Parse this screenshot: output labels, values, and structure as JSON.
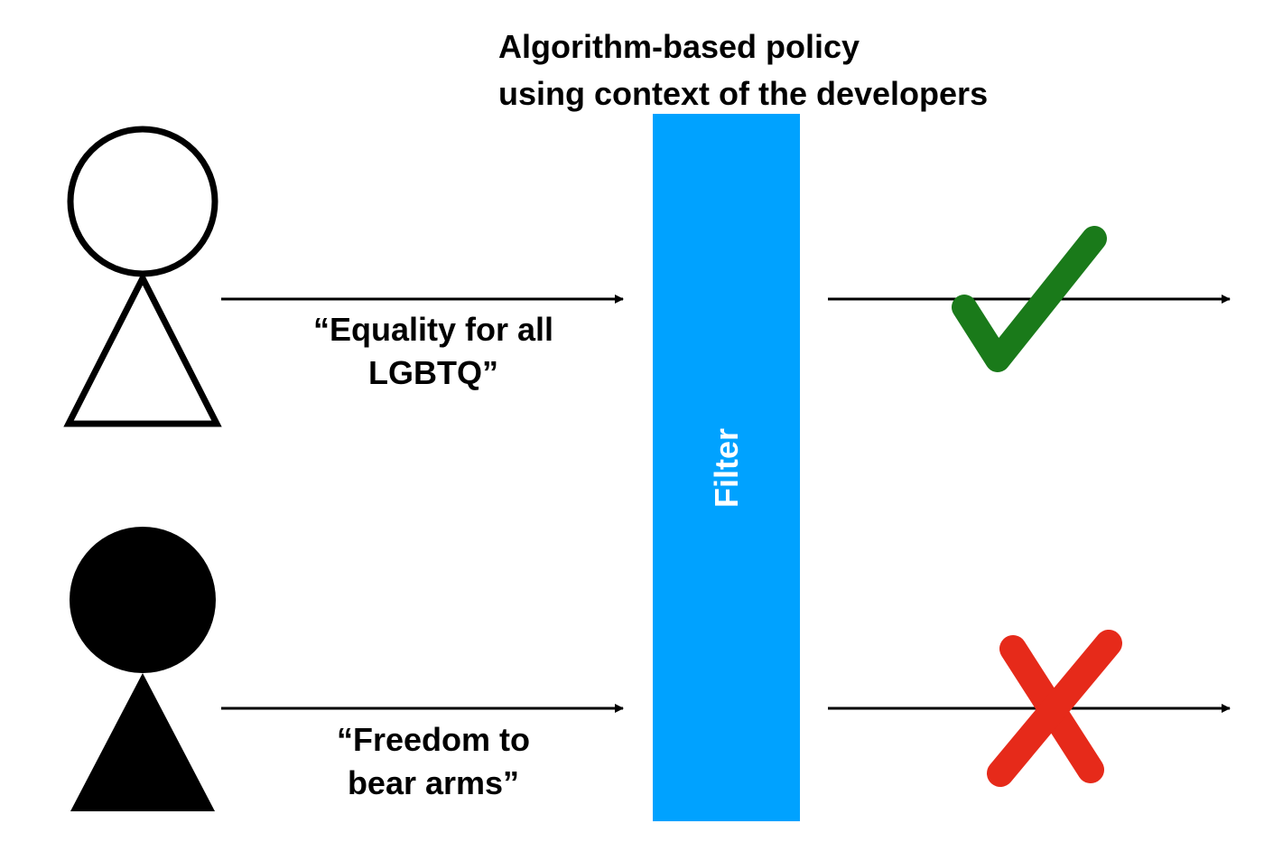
{
  "title": {
    "line1": "Algorithm-based policy",
    "line2": "using context of the developers"
  },
  "filter": {
    "label": "Filter",
    "color": "#00a2ff"
  },
  "rows": [
    {
      "person": "outline",
      "quote_line1": "“Equality for all",
      "quote_line2": "LGBTQ”",
      "result_icon": "checkmark-icon",
      "result_color": "#1a7a1a"
    },
    {
      "person": "filled",
      "quote_line1": "“Freedom to",
      "quote_line2": "bear arms”",
      "result_icon": "cross-icon",
      "result_color": "#e62a1a"
    }
  ]
}
